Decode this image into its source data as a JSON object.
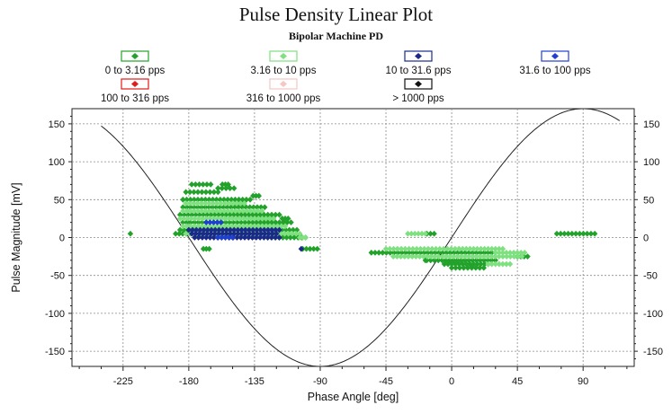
{
  "chart_data": {
    "type": "scatter",
    "title": "Pulse Density Linear Plot",
    "subtitle": "Bipolar Machine PD",
    "xlabel": "Phase Angle [deg]",
    "ylabel": "Pulse Magnitude [mV]",
    "xlim": [
      -260,
      125
    ],
    "ylim": [
      -170,
      170
    ],
    "xticks": [
      -225,
      -180,
      -135,
      -90,
      -45,
      0,
      45,
      90
    ],
    "yticks": [
      -150,
      -100,
      -50,
      0,
      50,
      100,
      150
    ],
    "legend_position": "top",
    "legend": [
      {
        "label": "0 to 3.16 pps",
        "color": "#22a22a"
      },
      {
        "label": "3.16 to 10 pps",
        "color": "#7fe07f"
      },
      {
        "label": "10 to 31.6 pps",
        "color": "#1b2a8a"
      },
      {
        "label": "31.6 to 100 pps",
        "color": "#1f3fd0"
      },
      {
        "label": "100 to 316 pps",
        "color": "#e01b1b"
      },
      {
        "label": "316 to 1000 pps",
        "color": "#f4c6c6"
      },
      {
        "label": "> 1000 pps",
        "color": "#111111"
      }
    ],
    "reference_curve": {
      "name": "sine",
      "amplitude": 170,
      "phase_offset_deg": 0
    },
    "series": [
      {
        "bin": "0 to 3.16 pps",
        "color": "#22a22a",
        "segments": [
          {
            "y": 70,
            "x0": -178,
            "x1": -165
          },
          {
            "y": 70,
            "x0": -157,
            "x1": -153
          },
          {
            "y": 65,
            "x0": -160,
            "x1": -149
          },
          {
            "y": 60,
            "x0": -182,
            "x1": -160
          },
          {
            "y": 55,
            "x0": -136,
            "x1": -132
          },
          {
            "y": 50,
            "x0": -184,
            "x1": -138
          },
          {
            "y": 40,
            "x0": -184,
            "x1": -128
          },
          {
            "y": 30,
            "x0": -186,
            "x1": -118
          },
          {
            "y": 25,
            "x0": -116,
            "x1": -112
          },
          {
            "y": 20,
            "x0": -184,
            "x1": -110
          },
          {
            "y": 10,
            "x0": -186,
            "x1": -106
          },
          {
            "y": 5,
            "x0": -189,
            "x1": -172
          },
          {
            "y": 5,
            "x0": -220,
            "x1": -220
          },
          {
            "y": 5,
            "x0": -17,
            "x1": -12
          },
          {
            "y": 5,
            "x0": 72,
            "x1": 98
          },
          {
            "y": 0,
            "x0": -126,
            "x1": -100
          },
          {
            "y": -15,
            "x0": -170,
            "x1": -166
          },
          {
            "y": -15,
            "x0": -102,
            "x1": -92
          },
          {
            "y": -20,
            "x0": -55,
            "x1": 30
          },
          {
            "y": -25,
            "x0": 45,
            "x1": 52
          },
          {
            "y": -30,
            "x0": -17,
            "x1": 30
          },
          {
            "y": -30,
            "x0": -18,
            "x1": -18
          },
          {
            "y": -35,
            "x0": -5,
            "x1": 25
          },
          {
            "y": -40,
            "x0": 0,
            "x1": 22
          }
        ]
      },
      {
        "bin": "3.16 to 10 pps",
        "color": "#7fe07f",
        "segments": [
          {
            "y": 45,
            "x0": -182,
            "x1": -142
          },
          {
            "y": 35,
            "x0": -184,
            "x1": -130
          },
          {
            "y": 25,
            "x0": -186,
            "x1": -122
          },
          {
            "y": 15,
            "x0": -184,
            "x1": -114
          },
          {
            "y": 5,
            "x0": -182,
            "x1": -104
          },
          {
            "y": 5,
            "x0": -30,
            "x1": -18
          },
          {
            "y": 0,
            "x0": -104,
            "x1": -100
          },
          {
            "y": -15,
            "x0": -45,
            "x1": 5
          },
          {
            "y": -15,
            "x0": 5,
            "x1": 35
          },
          {
            "y": -20,
            "x0": 30,
            "x1": 50
          },
          {
            "y": -25,
            "x0": -40,
            "x1": 48
          },
          {
            "y": -35,
            "x0": 25,
            "x1": 40
          }
        ]
      },
      {
        "bin": "10 to 31.6 pps",
        "color": "#1b2a8a",
        "segments": [
          {
            "y": 10,
            "x0": -180,
            "x1": -118
          },
          {
            "y": 5,
            "x0": -178,
            "x1": -120
          },
          {
            "y": 0,
            "x0": -176,
            "x1": -118
          },
          {
            "y": -15,
            "x0": -103,
            "x1": -103
          }
        ]
      },
      {
        "bin": "31.6 to 100 pps",
        "color": "#1f3fd0",
        "segments": [
          {
            "y": 20,
            "x0": -168,
            "x1": -158
          },
          {
            "y": 0,
            "x0": -160,
            "x1": -150
          }
        ]
      }
    ]
  }
}
